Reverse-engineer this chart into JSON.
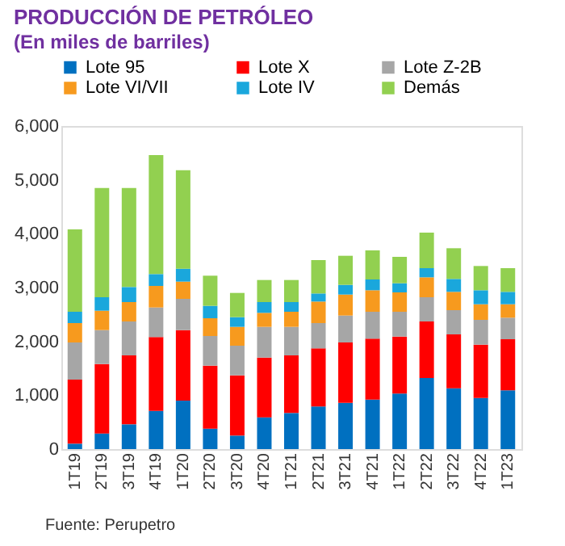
{
  "chart_data": {
    "type": "bar",
    "stacked": true,
    "title": "PRODUCCIÓN DE PETRÓLEO",
    "subtitle": "(En miles de barriles)",
    "categories": [
      "1T19",
      "2T19",
      "3T19",
      "4T19",
      "1T20",
      "2T20",
      "3T20",
      "4T20",
      "1T21",
      "2T21",
      "3T21",
      "4T21",
      "1T22",
      "2T22",
      "3T22",
      "4T22",
      "1T23"
    ],
    "series": [
      {
        "name": "Lote 95",
        "color": "#0070c0",
        "values": [
          100,
          290,
          460,
          710,
          900,
          380,
          250,
          590,
          670,
          790,
          860,
          920,
          1030,
          1320,
          1130,
          950,
          1090
        ]
      },
      {
        "name": "Lote X",
        "color": "#ff0000",
        "values": [
          1190,
          1290,
          1280,
          1370,
          1310,
          1170,
          1120,
          1110,
          1070,
          1080,
          1120,
          1130,
          1060,
          1050,
          1000,
          990,
          950
        ]
      },
      {
        "name": "Lote Z-2B",
        "color": "#a6a6a6",
        "values": [
          690,
          630,
          630,
          550,
          580,
          550,
          550,
          570,
          530,
          470,
          500,
          500,
          460,
          450,
          450,
          460,
          400
        ]
      },
      {
        "name": "Lote VI/VII",
        "color": "#f79a1e",
        "values": [
          360,
          360,
          360,
          400,
          320,
          330,
          350,
          260,
          280,
          400,
          390,
          400,
          360,
          370,
          340,
          290,
          250
        ]
      },
      {
        "name": "Lote IV",
        "color": "#1aa7dc",
        "values": [
          210,
          250,
          280,
          220,
          240,
          230,
          180,
          200,
          180,
          150,
          180,
          200,
          170,
          170,
          240,
          260,
          230
        ]
      },
      {
        "name": "Demás",
        "color": "#92d050",
        "values": [
          1530,
          2030,
          1840,
          2210,
          1830,
          560,
          450,
          410,
          410,
          620,
          540,
          540,
          490,
          660,
          570,
          450,
          440
        ]
      }
    ],
    "ylim": [
      0,
      6000
    ],
    "yticks": [
      0,
      {
        "value": 1000,
        "label": "1,000"
      },
      {
        "value": 2000,
        "label": "2,000"
      },
      {
        "value": 3000,
        "label": "3,000"
      },
      {
        "value": 4000,
        "label": "4,000"
      },
      {
        "value": 5000,
        "label": "5,000"
      },
      {
        "value": 6000,
        "label": "6,000"
      }
    ],
    "grid": false,
    "legend": "top",
    "annotations": [
      "Fuente: Perupetro"
    ]
  }
}
